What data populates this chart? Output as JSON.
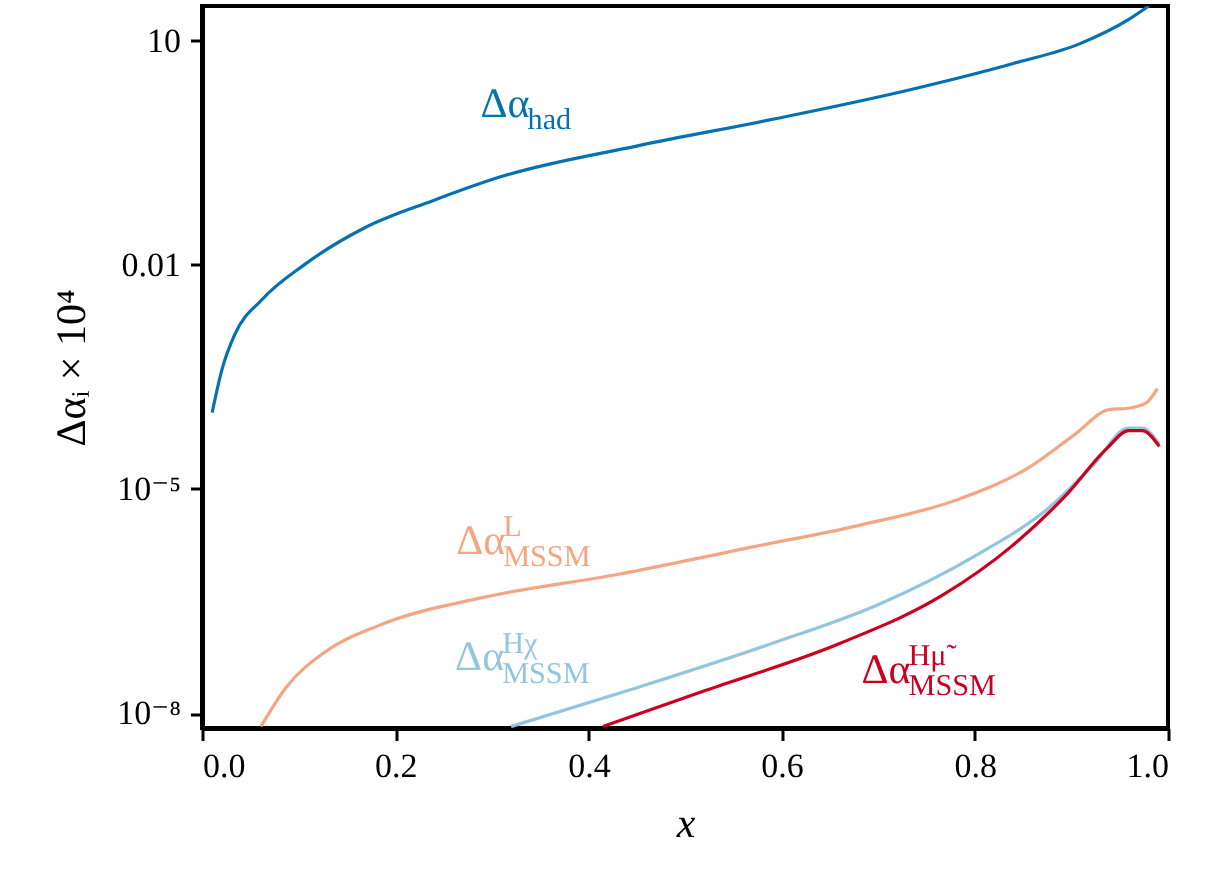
{
  "chart_data": {
    "type": "line",
    "xlabel": "x",
    "ylabel": "Δαᵢ × 10⁴",
    "log": "y",
    "grid": false,
    "xlim": [
      0,
      1
    ],
    "xticks": [
      {
        "value": 0,
        "label": "0.0"
      },
      {
        "value": 0.2,
        "label": "0.2"
      },
      {
        "value": 0.4,
        "label": "0.4"
      },
      {
        "value": 0.6,
        "label": "0.6"
      },
      {
        "value": 0.8,
        "label": "0.8"
      },
      {
        "value": 1,
        "label": "1.0"
      }
    ],
    "ylim": [
      6.3e-09,
      29
    ],
    "yticks": [
      10,
      0.01,
      {
        "value": 1e-05,
        "label": "10⁻⁵"
      },
      {
        "value": 1e-08,
        "label": "10⁻⁸"
      }
    ],
    "series": [
      {
        "name": "Δα$_{had}$",
        "color": "#0571b0",
        "x": [
          0.0105,
          0.021,
          0.034,
          0.062,
          0.105,
          0.168,
          0.239,
          0.309,
          0.451,
          0.592,
          0.733,
          0.839,
          0.909,
          0.959,
          0.98
        ],
        "values": [
          0.000105,
          0.00041,
          0.00117,
          0.0034,
          0.0098,
          0.031,
          0.072,
          0.15,
          0.39,
          0.89,
          2.2,
          4.9,
          9.1,
          19,
          29
        ]
      },
      {
        "name": "Δα$^{L}$$_{MSSM}$",
        "color": "#f4a582",
        "x": [
          0.061,
          0.087,
          0.127,
          0.184,
          0.29,
          0.431,
          0.573,
          0.678,
          0.785,
          0.855,
          0.904,
          0.939,
          0.959,
          0.977,
          0.989
        ],
        "values": [
          6.6e-09,
          2.2e-08,
          6.5e-08,
          1.5e-07,
          3.5e-07,
          7.2e-07,
          1.7e-06,
          3.2e-06,
          7.4e-06,
          1.9e-05,
          5.4e-05,
          0.000115,
          0.00012,
          0.00014,
          0.00022
        ]
      },
      {
        "name": "Δα$^{Hχ}$$_{MSSM}$",
        "color": "#92c5de",
        "x": [
          0.32,
          0.451,
          0.592,
          0.698,
          0.804,
          0.874,
          0.923,
          0.959,
          0.973,
          0.991
        ],
        "values": [
          6.6e-09,
          2.2e-08,
          8.7e-08,
          2.75e-07,
          1.35e-06,
          5.2e-06,
          2.1e-05,
          6.5e-05,
          6.5e-05,
          4e-05
        ]
      },
      {
        "name": "Δα$^{Hμ̃}$$_{MSSM}$",
        "color": "#ca0020",
        "x": [
          0.415,
          0.521,
          0.662,
          0.767,
          0.838,
          0.894,
          0.937,
          0.959,
          0.973,
          0.991
        ],
        "values": [
          6.6e-09,
          2e-08,
          8.7e-08,
          3.8e-07,
          1.7e-06,
          8.1e-06,
          3.5e-05,
          6e-05,
          6e-05,
          3.7e-05
        ]
      }
    ]
  }
}
